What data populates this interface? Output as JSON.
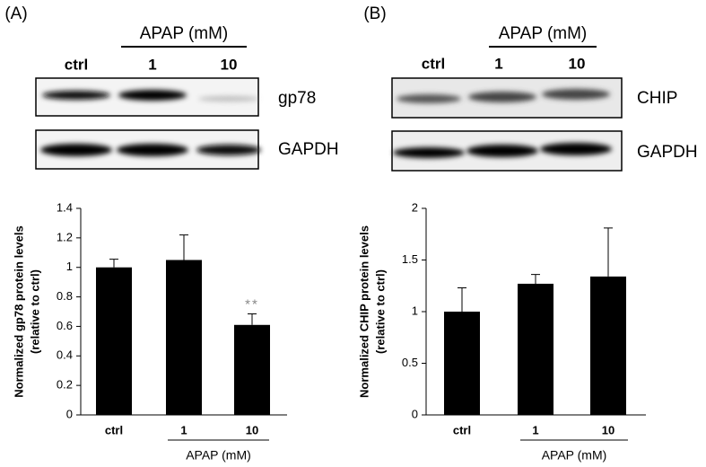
{
  "panels": [
    {
      "label": "(A)",
      "treatment": "APAP (mM)",
      "lanes": [
        "ctrl",
        "1",
        "10"
      ],
      "bands": [
        "gp78",
        "GAPDH"
      ]
    },
    {
      "label": "(B)",
      "treatment": "APAP (mM)",
      "lanes": [
        "ctrl",
        "1",
        "10"
      ],
      "bands": [
        "CHIP",
        "GAPDH"
      ]
    }
  ],
  "chart_data": [
    {
      "type": "bar",
      "ylabel": [
        "Normalized gp78 protein levels",
        "(relative to ctrl)"
      ],
      "categories": [
        "ctrl",
        "1",
        "10"
      ],
      "group_label": "APAP (mM)",
      "values": [
        1,
        1.05,
        0.61
      ],
      "errors": [
        0.055,
        0.17,
        0.075
      ],
      "significance": [
        null,
        null,
        "**"
      ],
      "color": "#000000",
      "ylim": [
        0,
        1.4
      ],
      "yticks": [
        0,
        0.2,
        0.4,
        0.6,
        0.8,
        1,
        1.2,
        1.4
      ],
      "grid": false
    },
    {
      "type": "bar",
      "ylabel": [
        "Normalized CHIP protein levels",
        "(relative to ctrl)"
      ],
      "categories": [
        "ctrl",
        "1",
        "10"
      ],
      "group_label": "APAP (mM)",
      "values": [
        1,
        1.27,
        1.34
      ],
      "errors": [
        0.23,
        0.09,
        0.47
      ],
      "significance": [
        null,
        null,
        null
      ],
      "color": "#000000",
      "ylim": [
        0,
        2
      ],
      "yticks": [
        0,
        0.5,
        1,
        1.5,
        2
      ],
      "grid": false
    }
  ]
}
